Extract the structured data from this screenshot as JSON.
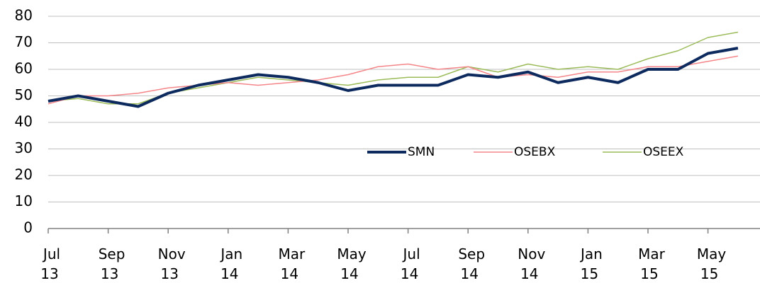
{
  "chart_data": {
    "type": "line",
    "categories": [
      "Jul 13",
      null,
      "Sep 13",
      null,
      "Nov 13",
      null,
      "Jan 14",
      null,
      "Mar 14",
      null,
      "May 14",
      null,
      "Jul 14",
      null,
      "Sep 14",
      null,
      "Nov 14",
      null,
      "Jan 15",
      null,
      "Mar 15",
      null,
      "May 15",
      null
    ],
    "series": [
      {
        "name": "SMN",
        "color": "#0d2a5e",
        "values": [
          48,
          50,
          48,
          46,
          51,
          54,
          56,
          58,
          57,
          55,
          52,
          54,
          54,
          54,
          58,
          57,
          59,
          55,
          57,
          55,
          60,
          60,
          66,
          68
        ]
      },
      {
        "name": "OSEBX",
        "color": "#f4868a",
        "values": [
          47,
          50,
          50,
          51,
          53,
          54,
          55,
          54,
          55,
          56,
          58,
          61,
          62,
          60,
          61,
          57,
          58,
          57,
          59,
          59,
          61,
          61,
          63,
          65
        ]
      },
      {
        "name": "OSEEX",
        "color": "#9bbb59",
        "values": [
          48,
          49,
          47,
          47,
          51,
          53,
          55,
          57,
          56,
          55,
          54,
          56,
          57,
          57,
          61,
          59,
          62,
          60,
          61,
          60,
          64,
          67,
          72,
          74
        ]
      }
    ],
    "ylim": [
      0,
      80
    ],
    "yticks": [
      0,
      10,
      20,
      30,
      40,
      50,
      60,
      70,
      80
    ],
    "grid": true
  }
}
